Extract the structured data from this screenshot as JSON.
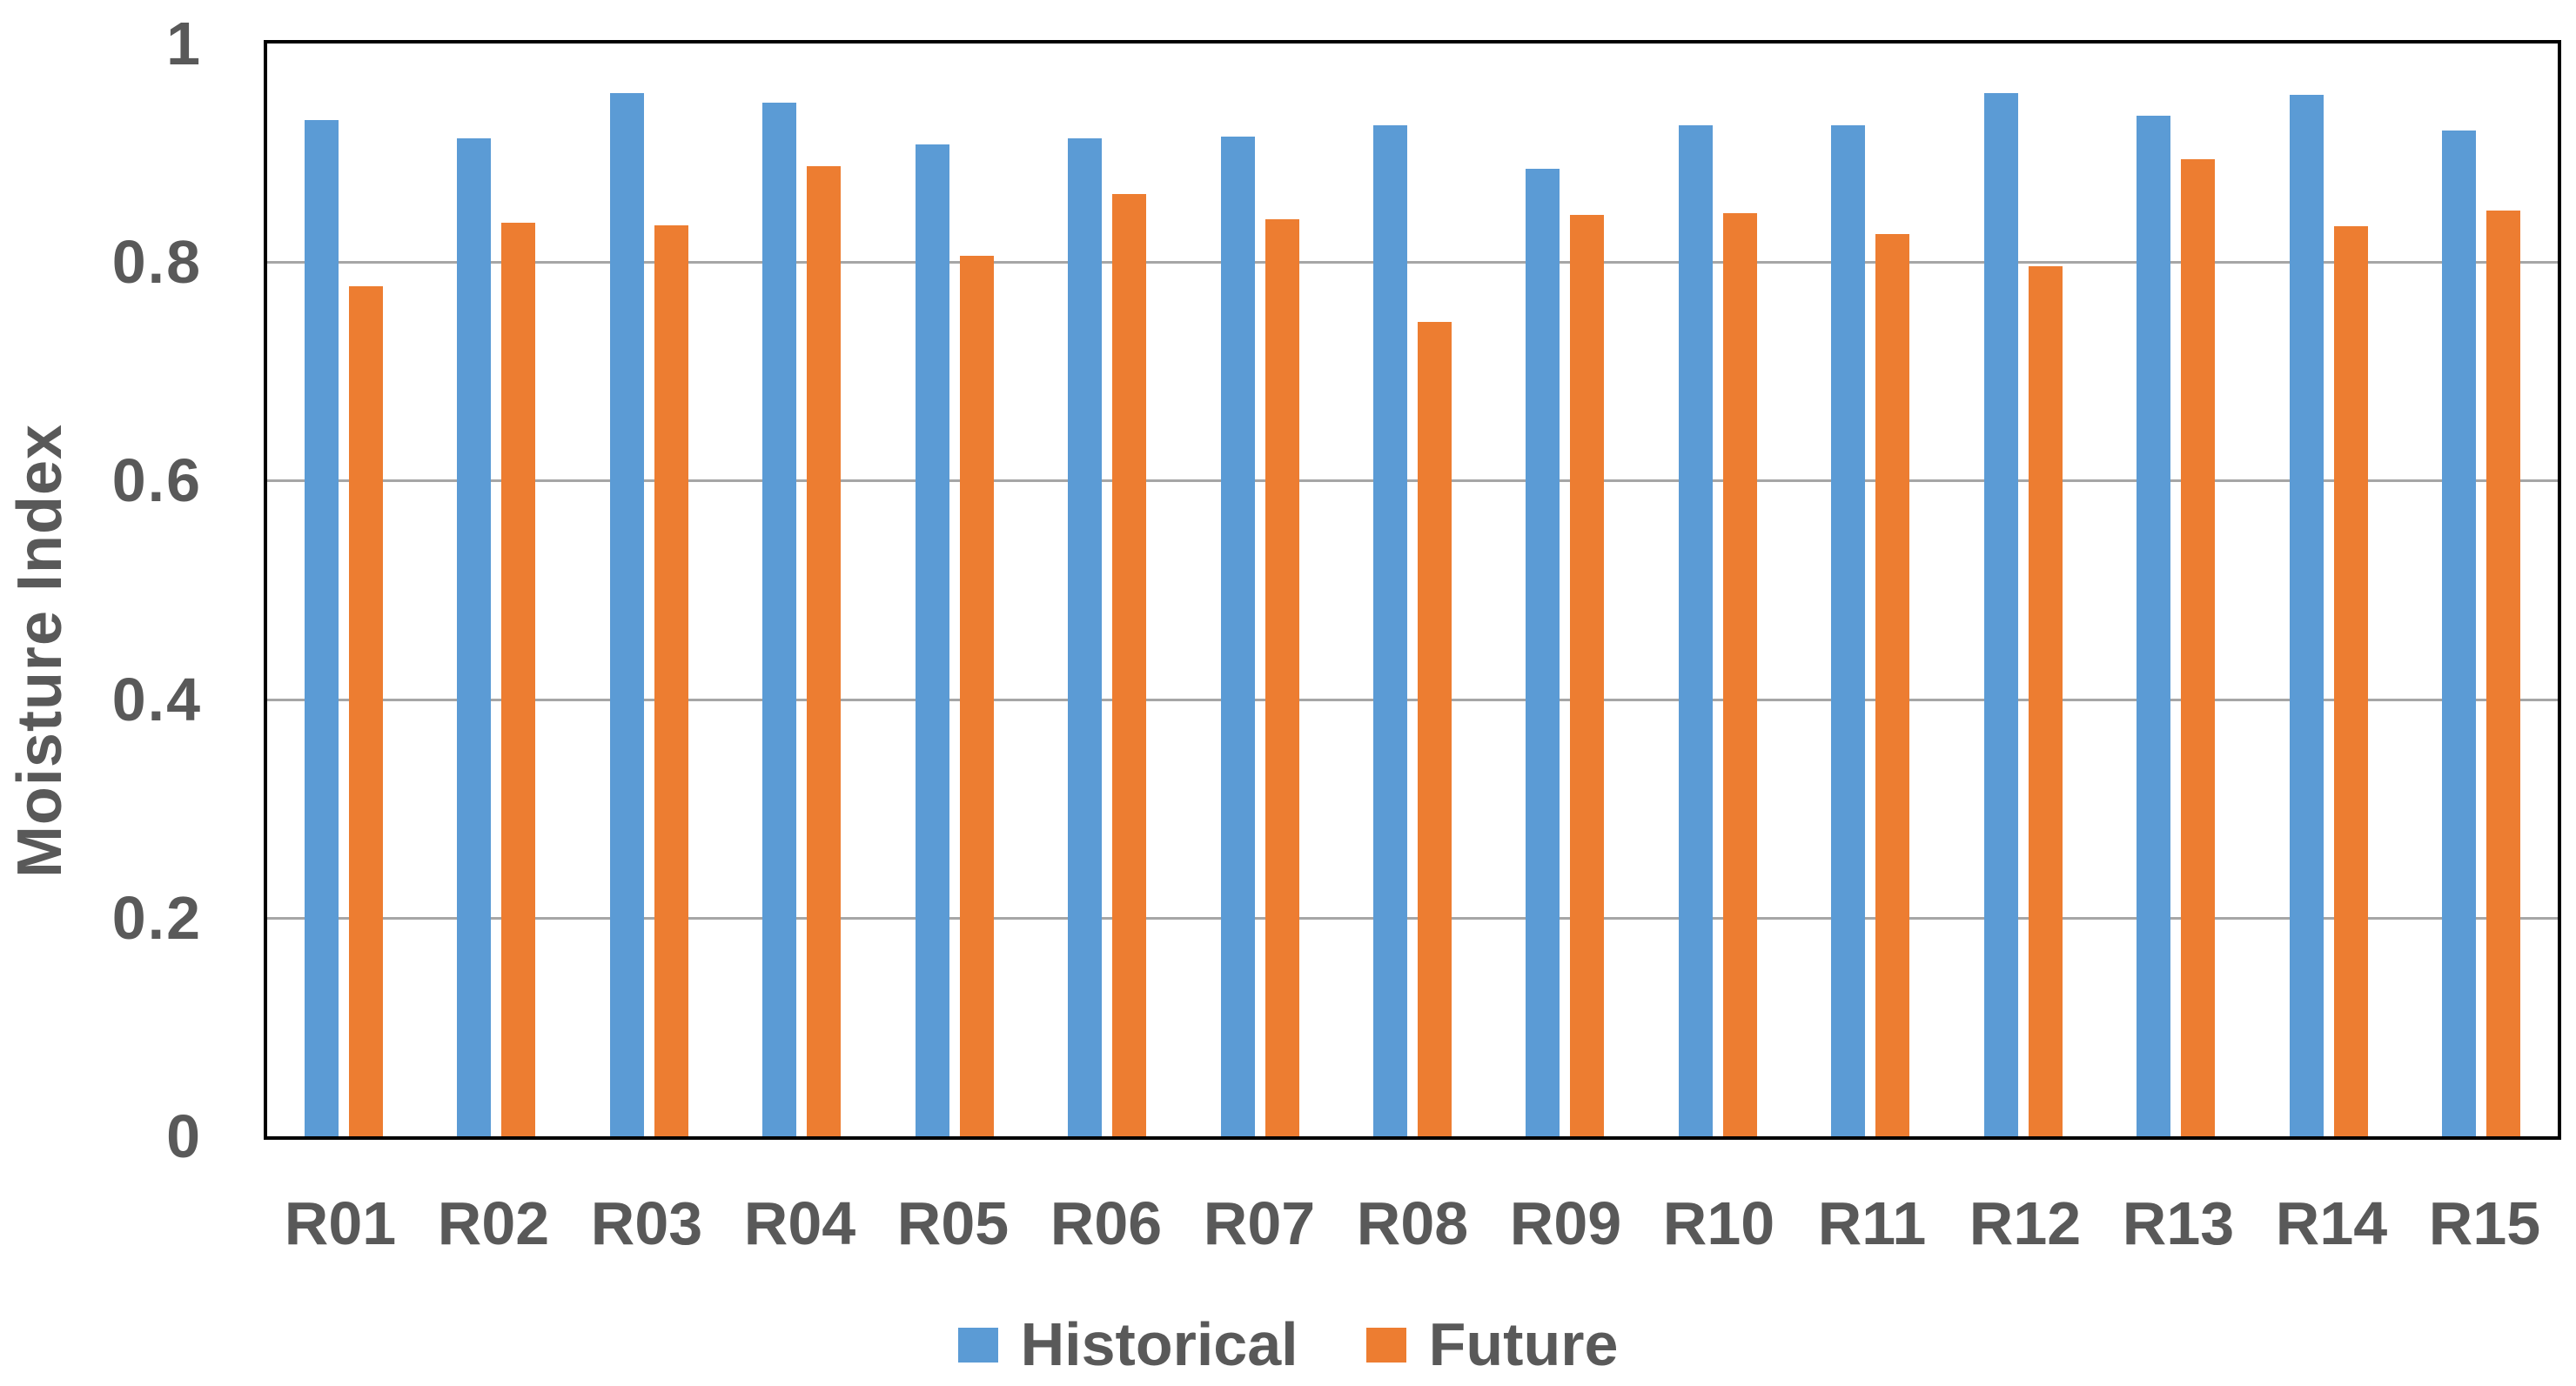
{
  "chart_data": {
    "type": "bar",
    "title": "",
    "xlabel": "",
    "ylabel": "Moisture Index",
    "ylim": [
      0,
      1
    ],
    "yticks": [
      0,
      0.2,
      0.4,
      0.6,
      0.8,
      1
    ],
    "ytick_labels": [
      "0",
      "0.2",
      "0.4",
      "0.6",
      "0.8",
      "1"
    ],
    "grid": true,
    "gridline_color": "#A6A6A6",
    "axis_border_color": "#000000",
    "text_color": "#595959",
    "legend_position": "bottom",
    "categories": [
      "R01",
      "R02",
      "R03",
      "R04",
      "R05",
      "R06",
      "R07",
      "R08",
      "R09",
      "R10",
      "R11",
      "R12",
      "R13",
      "R14",
      "R15"
    ],
    "series": [
      {
        "name": "Historical",
        "color": "#5B9BD5",
        "values": [
          0.93,
          0.913,
          0.955,
          0.946,
          0.908,
          0.913,
          0.915,
          0.925,
          0.885,
          0.925,
          0.925,
          0.955,
          0.934,
          0.953,
          0.92
        ]
      },
      {
        "name": "Future",
        "color": "#ED7D31",
        "values": [
          0.778,
          0.836,
          0.834,
          0.888,
          0.806,
          0.862,
          0.839,
          0.745,
          0.843,
          0.845,
          0.826,
          0.796,
          0.894,
          0.833,
          0.847
        ]
      }
    ]
  }
}
